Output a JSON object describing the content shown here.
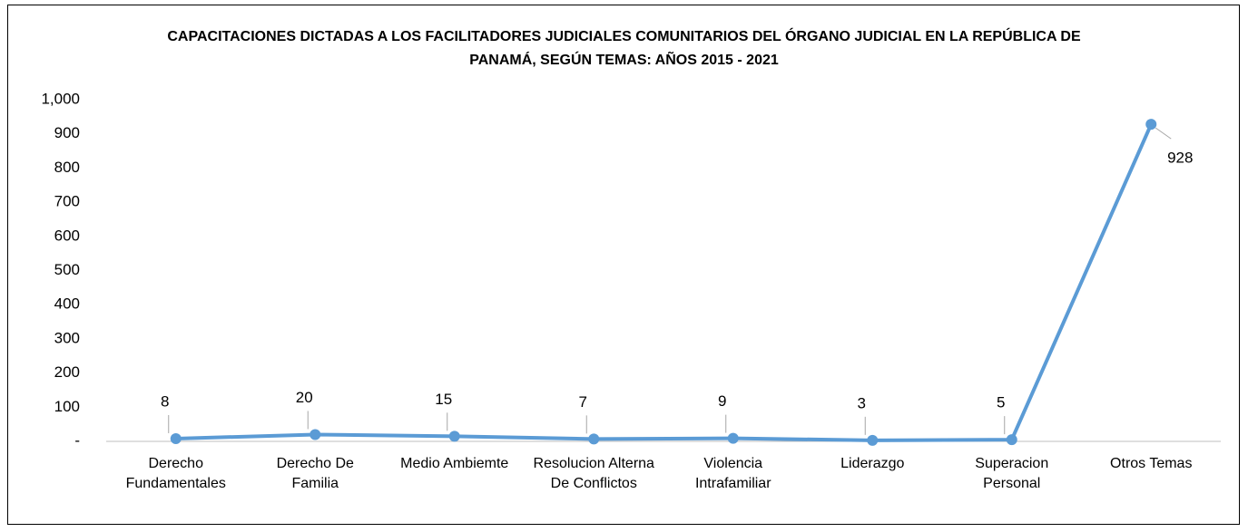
{
  "chart_data": {
    "type": "line",
    "title": "CAPACITACIONES DICTADAS A LOS  FACILITADORES JUDICIALES COMUNITARIOS DEL ÓRGANO JUDICIAL EN LA REPÚBLICA DE PANAMÁ, SEGÚN TEMAS: AÑOS 2015 - 2021",
    "categories": [
      "Derecho Fundamentales",
      "Derecho De Familia",
      "Medio Ambiemte",
      "Resolucion Alterna De Conflictos",
      "Violencia Intrafamiliar",
      "Liderazgo",
      "Superacion Personal",
      "Otros Temas"
    ],
    "values": [
      8,
      20,
      15,
      7,
      9,
      3,
      5,
      928
    ],
    "color": "#5b9bd5",
    "ylim": [
      0,
      1000
    ],
    "yticks": [
      {
        "value": 0,
        "label": "-"
      },
      100,
      200,
      300,
      400,
      500,
      600,
      700,
      800,
      900,
      {
        "value": 1000,
        "label": "1,000"
      }
    ],
    "grid": false
  }
}
